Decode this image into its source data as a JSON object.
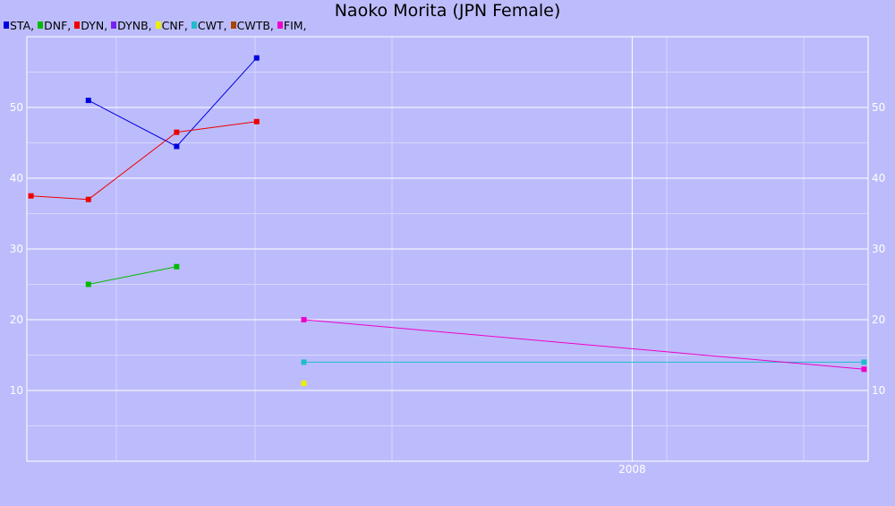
{
  "chart_data": {
    "type": "line",
    "title": "Naoko Morita (JPN Female)",
    "legend_position": "top-left",
    "grid": true,
    "ylim": [
      0,
      60
    ],
    "y_ticks": [
      10,
      20,
      30,
      40,
      50
    ],
    "y_tick_labels": [
      "10",
      "20",
      "30",
      "40",
      "50"
    ],
    "x_tick_labels": [
      {
        "x": 2008.0,
        "label": "2008"
      }
    ],
    "xlim": [
      2005.05,
      2009.15
    ],
    "series": [
      {
        "name": "STA",
        "suffix": ",",
        "color": "#0000dd",
        "points": [
          [
            2005.35,
            51.0
          ],
          [
            2005.78,
            44.5
          ],
          [
            2006.17,
            57.0
          ]
        ]
      },
      {
        "name": "DNF",
        "suffix": ",",
        "color": "#00bb00",
        "points": [
          [
            2005.35,
            25.0
          ],
          [
            2005.78,
            27.5
          ]
        ]
      },
      {
        "name": "DYN",
        "suffix": ",",
        "color": "#ee0000",
        "points": [
          [
            2005.07,
            37.5
          ],
          [
            2005.35,
            37.0
          ],
          [
            2005.78,
            46.5
          ],
          [
            2006.17,
            48.0
          ]
        ]
      },
      {
        "name": "DYNB",
        "suffix": ",",
        "color": "#7722ee",
        "points": []
      },
      {
        "name": "CNF",
        "suffix": ",",
        "color": "#eeee00",
        "points": [
          [
            2006.4,
            11.0
          ]
        ]
      },
      {
        "name": "CWT",
        "suffix": ",",
        "color": "#22bbcc",
        "points": [
          [
            2006.4,
            14.0
          ],
          [
            2009.13,
            14.0
          ]
        ]
      },
      {
        "name": "CWTB",
        "suffix": ",",
        "color": "#aa4400",
        "points": []
      },
      {
        "name": "FIM",
        "suffix": ",",
        "color": "#ee00cc",
        "points": [
          [
            2006.4,
            20.0
          ],
          [
            2009.13,
            13.0
          ]
        ]
      }
    ]
  }
}
